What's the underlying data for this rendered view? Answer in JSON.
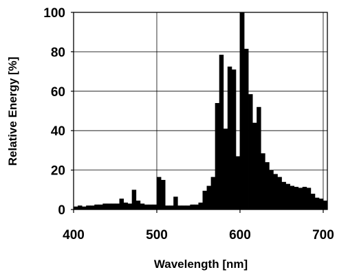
{
  "chart_data": {
    "type": "bar",
    "xlabel": "Wavelength [nm]",
    "ylabel": "Relative Energy [%]",
    "xlim": [
      400,
      705
    ],
    "ylim": [
      0,
      100
    ],
    "bin_width": 5,
    "grid": true,
    "x_ticks": [
      400,
      500,
      600,
      700
    ],
    "y_ticks": [
      0,
      20,
      40,
      60,
      80,
      100
    ],
    "x_tick_labels": [
      "400",
      "500",
      "600",
      "700"
    ],
    "y_tick_labels": [
      "0",
      "20",
      "40",
      "60",
      "80",
      "100"
    ],
    "bar_color": "#000000",
    "x": [
      400,
      405,
      410,
      415,
      420,
      425,
      430,
      435,
      440,
      445,
      450,
      455,
      460,
      465,
      470,
      475,
      480,
      485,
      490,
      495,
      500,
      505,
      510,
      515,
      520,
      525,
      530,
      535,
      540,
      545,
      550,
      555,
      560,
      565,
      570,
      575,
      580,
      585,
      590,
      595,
      600,
      605,
      610,
      615,
      620,
      625,
      630,
      635,
      640,
      645,
      650,
      655,
      660,
      665,
      670,
      675,
      680,
      685,
      690,
      695,
      700
    ],
    "values": [
      1.5,
      2,
      1.5,
      2,
      2,
      2.5,
      2.5,
      3,
      3,
      3,
      3,
      5.5,
      3.5,
      3,
      10,
      4.5,
      3,
      2.5,
      2.5,
      2.5,
      16.5,
      15,
      2,
      2,
      6.5,
      2,
      2,
      2,
      2.5,
      2.5,
      3.5,
      9.5,
      12,
      16.5,
      54,
      78.5,
      41,
      72.5,
      71,
      27,
      100,
      81.5,
      58.5,
      44,
      52,
      28.5,
      24,
      20,
      18,
      16.5,
      14,
      13,
      12,
      11.5,
      11,
      11.5,
      11,
      8,
      6,
      5.5,
      4.5
    ]
  }
}
